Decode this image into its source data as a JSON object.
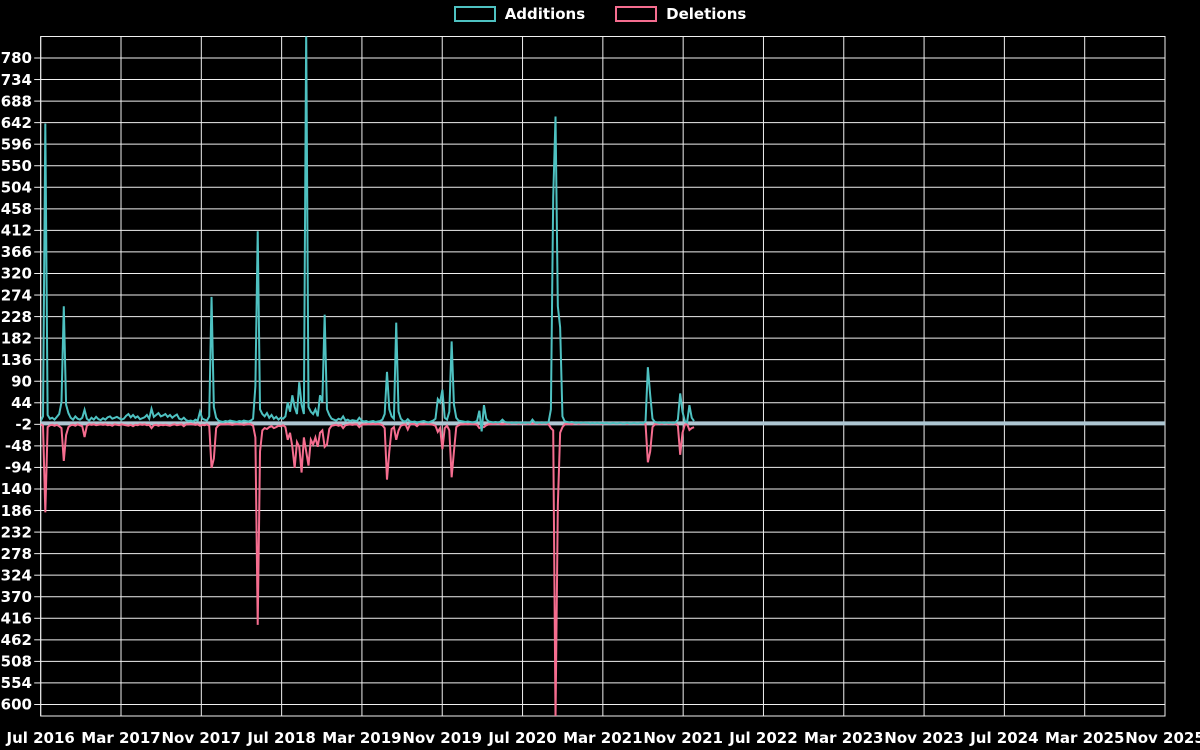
{
  "chart_data": {
    "type": "line",
    "title": "",
    "description": "Weekly code additions and deletions from Jul 2016 to late Nov 2021, plotted on an axis extending to Nov 2025",
    "background_color": "#000000",
    "grid": true,
    "grid_color": "#f0f0f0",
    "text_color": "#ffffff",
    "zero_line_color": "#aec6d2",
    "legend_position": "top-center",
    "x_tick_labels": [
      "Jul 2016",
      "Mar 2017",
      "Nov 2017",
      "Jul 2018",
      "Mar 2019",
      "Nov 2019",
      "Jul 2020",
      "Mar 2021",
      "Nov 2021",
      "Jul 2022",
      "Mar 2023",
      "Nov 2023",
      "Jul 2024",
      "Mar 2025",
      "Nov 2025"
    ],
    "y_tick_values": [
      780,
      734,
      688,
      642,
      596,
      550,
      504,
      458,
      412,
      366,
      320,
      274,
      228,
      182,
      136,
      90,
      44,
      -2,
      -48,
      -94,
      -140,
      -186,
      -232,
      -278,
      -324,
      -370,
      -416,
      -462,
      -508,
      -554,
      -600
    ],
    "y_axis": {
      "tick_step": 46,
      "min_label": -600,
      "max_label": 780
    },
    "x_axis": {
      "start_label": "Jul 2016",
      "end_label": "Nov 2025",
      "months_per_tick": 8,
      "weeks_total": 487,
      "weeks_with_data": 284
    },
    "clipping_note": "Largest additions spike (~Sep 2018) is clipped at the plot top; largest deletions spike (~Oct 2020) is clipped at the plot bottom",
    "series": [
      {
        "name": "Additions",
        "color": "#4ec1c1",
        "weekly_values": [
          5,
          15,
          640,
          18,
          10,
          12,
          8,
          14,
          20,
          45,
          250,
          40,
          22,
          12,
          8,
          15,
          10,
          8,
          12,
          29,
          10,
          6,
          12,
          8,
          14,
          9,
          7,
          11,
          8,
          13,
          15,
          10,
          12,
          14,
          11,
          8,
          10,
          16,
          20,
          13,
          18,
          12,
          15,
          9,
          11,
          13,
          18,
          10,
          31,
          14,
          18,
          22,
          15,
          17,
          20,
          14,
          18,
          12,
          16,
          19,
          10,
          8,
          12,
          7,
          5,
          6,
          4,
          8,
          6,
          25,
          10,
          8,
          6,
          15,
          270,
          35,
          12,
          6,
          4,
          3,
          5,
          4,
          6,
          5,
          4,
          3,
          5,
          4,
          6,
          5,
          4,
          6,
          10,
          80,
          410,
          30,
          20,
          15,
          22,
          12,
          18,
          10,
          14,
          8,
          12,
          10,
          15,
          45,
          25,
          60,
          35,
          20,
          88,
          40,
          20,
          840,
          35,
          25,
          20,
          30,
          15,
          60,
          45,
          232,
          30,
          18,
          10,
          8,
          6,
          10,
          8,
          15,
          6,
          8,
          5,
          7,
          6,
          5,
          12,
          6,
          4,
          5,
          3,
          4,
          5,
          3,
          4,
          5,
          8,
          20,
          110,
          30,
          15,
          10,
          215,
          25,
          10,
          5,
          4,
          9,
          4,
          3,
          4,
          2,
          3,
          4,
          5,
          3,
          2,
          4,
          6,
          10,
          52,
          45,
          72,
          12,
          8,
          25,
          175,
          40,
          12,
          6,
          5,
          4,
          3,
          4,
          3,
          2,
          3,
          5,
          27,
          -17,
          39,
          10,
          4,
          3,
          2,
          3,
          2,
          3,
          8,
          3,
          2,
          2,
          1,
          2,
          1,
          2,
          1,
          2,
          1,
          2,
          1,
          8,
          2,
          1,
          2,
          1,
          2,
          1,
          3,
          30,
          483,
          655,
          250,
          205,
          15,
          4,
          3,
          2,
          3,
          2,
          1,
          2,
          1,
          2,
          1,
          1,
          0,
          1,
          0,
          1,
          0,
          1,
          0,
          1,
          0,
          0,
          1,
          0,
          0,
          1,
          0,
          0,
          1,
          0,
          0,
          1,
          0,
          0,
          1,
          0,
          5,
          120,
          61,
          10,
          3,
          2,
          1,
          2,
          1,
          2,
          1,
          2,
          1,
          2,
          8,
          64,
          25,
          5,
          2,
          39,
          12,
          5
        ]
      },
      {
        "name": "Deletions",
        "color": "#f56d8f",
        "weekly_values": [
          -2,
          -5,
          -190,
          -8,
          -4,
          -3,
          -5,
          -3,
          -6,
          -10,
          -80,
          -25,
          -8,
          -4,
          -3,
          -5,
          -2,
          -4,
          -6,
          -29,
          -5,
          -2,
          -3,
          -2,
          -4,
          -3,
          -2,
          -3,
          -2,
          -4,
          -3,
          -5,
          -2,
          -3,
          -4,
          -2,
          -3,
          -4,
          -5,
          -3,
          -6,
          -3,
          -4,
          -2,
          -3,
          -2,
          -4,
          -3,
          -10,
          -4,
          -3,
          -5,
          -3,
          -4,
          -3,
          -4,
          -5,
          -3,
          -2,
          -4,
          -3,
          -2,
          -6,
          -2,
          -2,
          -1,
          -2,
          -3,
          -2,
          -5,
          -3,
          -4,
          -2,
          -5,
          -95,
          -75,
          -10,
          -4,
          -2,
          -2,
          -2,
          -1,
          -2,
          -3,
          -2,
          -1,
          -2,
          -2,
          -3,
          -2,
          -1,
          -2,
          -5,
          -30,
          -430,
          -60,
          -15,
          -10,
          -12,
          -8,
          -6,
          -10,
          -8,
          -5,
          -6,
          -4,
          -8,
          -35,
          -20,
          -50,
          -95,
          -40,
          -50,
          -105,
          -30,
          -60,
          -90,
          -35,
          -45,
          -30,
          -50,
          -20,
          -15,
          -50,
          -45,
          -12,
          -5,
          -4,
          -3,
          -5,
          -3,
          -10,
          -4,
          -3,
          -2,
          -3,
          -2,
          -2,
          -8,
          -3,
          -2,
          -2,
          -1,
          -2,
          -1,
          -2,
          -1,
          -2,
          -4,
          -10,
          -120,
          -60,
          -12,
          -8,
          -35,
          -15,
          -5,
          -3,
          -2,
          -13,
          -2,
          -1,
          -2,
          -6,
          -1,
          -2,
          -2,
          -1,
          -1,
          -2,
          -3,
          -5,
          -18,
          -10,
          -55,
          -10,
          -5,
          -15,
          -115,
          -60,
          -8,
          -4,
          -2,
          -2,
          -1,
          -2,
          -1,
          -1,
          -2,
          -3,
          -10,
          -8,
          -8,
          -4,
          -2,
          -1,
          -1,
          -1,
          0,
          -1,
          -2,
          -1,
          0,
          -1,
          0,
          0,
          0,
          -1,
          0,
          0,
          0,
          -1,
          0,
          -1,
          0,
          0,
          -1,
          0,
          0,
          0,
          -2,
          -10,
          -15,
          -630,
          -175,
          -20,
          -8,
          -2,
          -1,
          -1,
          -2,
          0,
          0,
          -1,
          0,
          0,
          0,
          0,
          0,
          0,
          0,
          0,
          0,
          -1,
          0,
          0,
          0,
          0,
          0,
          0,
          0,
          0,
          0,
          0,
          -1,
          0,
          0,
          0,
          0,
          0,
          0,
          0,
          -2,
          -83,
          -60,
          -8,
          -2,
          -1,
          0,
          -1,
          0,
          0,
          -1,
          0,
          0,
          -1,
          -5,
          -67,
          -20,
          -3,
          -1,
          -14,
          -10,
          -8
        ]
      }
    ]
  }
}
